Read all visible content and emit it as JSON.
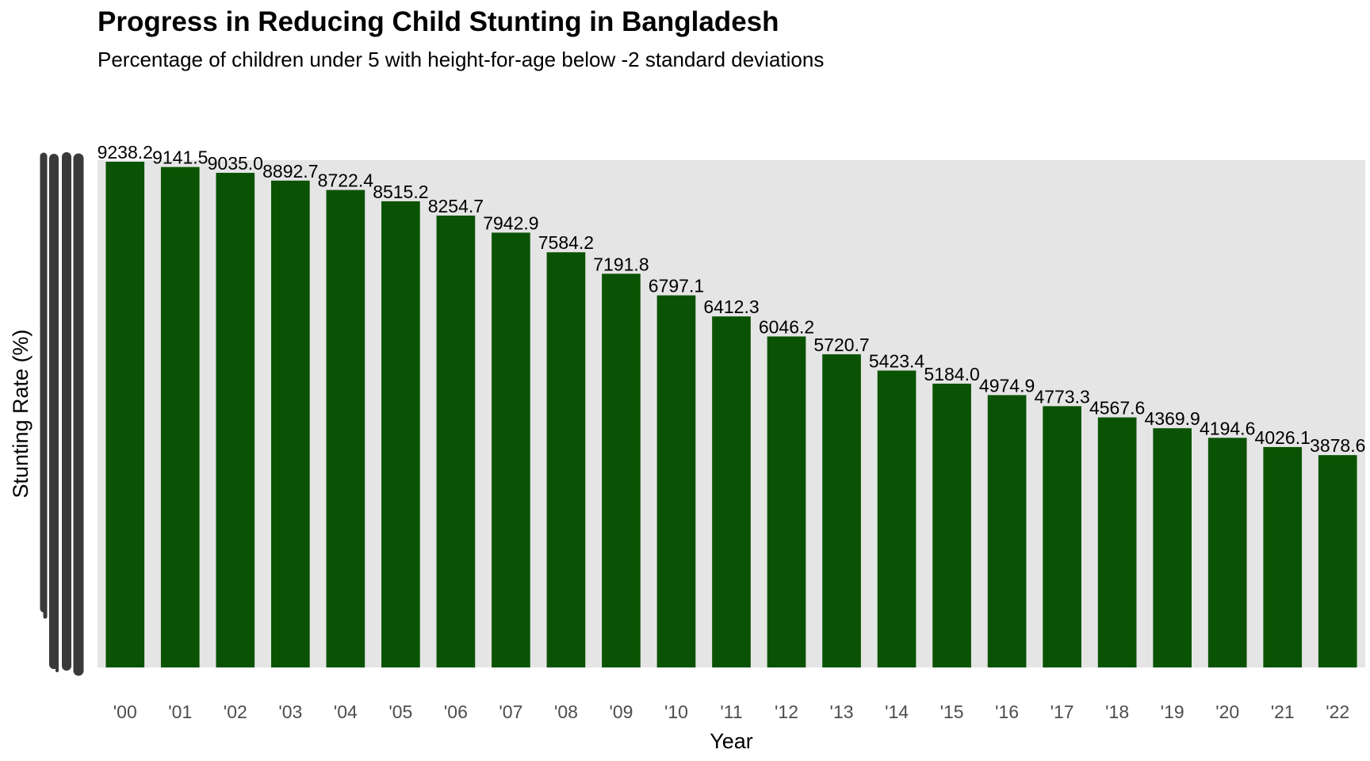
{
  "chart_data": {
    "type": "bar",
    "title": "Progress in Reducing Child Stunting in Bangladesh",
    "subtitle": "Percentage of children under 5 with height-for-age below -2 standard deviations",
    "xlabel": "Year",
    "ylabel": "Stunting Rate (%)",
    "categories": [
      "'00",
      "'01",
      "'02",
      "'03",
      "'04",
      "'05",
      "'06",
      "'07",
      "'08",
      "'09",
      "'10",
      "'11",
      "'12",
      "'13",
      "'14",
      "'15",
      "'16",
      "'17",
      "'18",
      "'19",
      "'20",
      "'21",
      "'22"
    ],
    "values": [
      9238.2,
      9141.5,
      9035.0,
      8892.7,
      8722.4,
      8515.2,
      8254.7,
      7942.9,
      7584.2,
      7191.8,
      6797.1,
      6412.3,
      6046.2,
      5720.7,
      5423.4,
      5184.0,
      4974.9,
      4773.3,
      4567.6,
      4369.9,
      4194.6,
      4026.1,
      3878.6
    ],
    "data_labels": [
      "9238.2",
      "9141.5",
      "9035.0",
      "8892.7",
      "8722.4",
      "8515.2",
      "8254.7",
      "7942.9",
      "7584.2",
      "7191.8",
      "6797.1",
      "6412.3",
      "6046.2",
      "5720.7",
      "5423.4",
      "5184.0",
      "4974.9",
      "4773.3",
      "4567.6",
      "4369.9",
      "4194.6",
      "4026.1",
      "3878.6"
    ],
    "ylim": [
      0,
      9238.2
    ],
    "grid": false,
    "legend": "none",
    "colors": {
      "bar": "#0b5304",
      "panel_background": "#e5e5e5",
      "tick_text": "#4d4d4d",
      "label_text": "#000000"
    }
  }
}
